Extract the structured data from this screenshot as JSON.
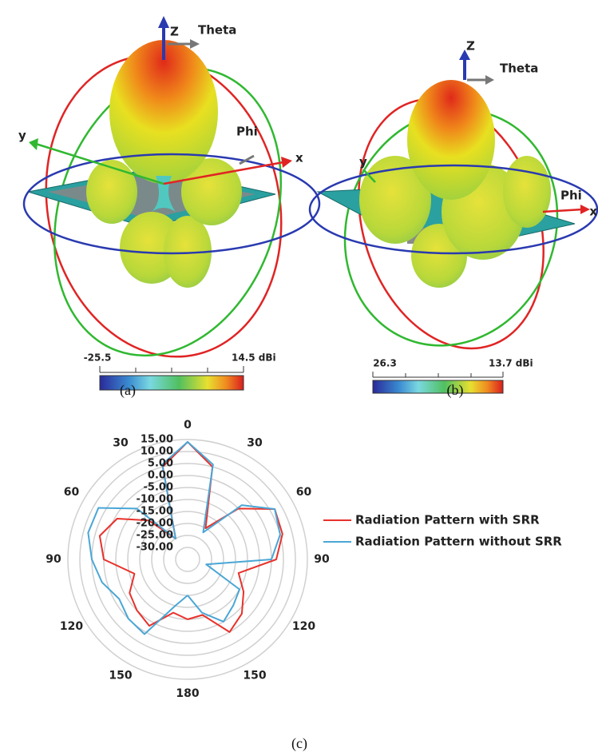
{
  "panel_a": {
    "labels": {
      "z": "Z",
      "theta": "Theta",
      "y": "y",
      "phi": "Phi",
      "x": "x"
    },
    "colorbar": {
      "min": "-25.5",
      "max": "14.5 dBi"
    },
    "caption": "(a)"
  },
  "panel_b": {
    "labels": {
      "z": "Z",
      "theta": "Theta",
      "y": "y",
      "phi": "Phi",
      "x": "x"
    },
    "colorbar": {
      "min": "26.3",
      "max": "13.7 dBi"
    },
    "caption": "(b)"
  },
  "chart_data": {
    "type": "polar",
    "caption": "(c)",
    "x": [
      -180,
      -165,
      -150,
      -135,
      -120,
      -105,
      -90,
      -75,
      -60,
      -45,
      -30,
      -15,
      0,
      15,
      30,
      45,
      60,
      75,
      90,
      105,
      120,
      135,
      150,
      165,
      180
    ],
    "xlim": [
      -180,
      180
    ],
    "xticks": [
      {
        "value": -150,
        "label": "150"
      },
      {
        "value": -120,
        "label": "120"
      },
      {
        "value": -90,
        "label": "90"
      },
      {
        "value": -60,
        "label": "60"
      },
      {
        "value": -30,
        "label": "30"
      },
      0,
      30,
      60,
      90,
      120,
      150,
      180
    ],
    "ylim": [
      -35,
      15
    ],
    "yticks": [
      {
        "value": 15,
        "label": "15.00"
      },
      {
        "value": 10,
        "label": "10.00"
      },
      {
        "value": 5,
        "label": "5.00"
      },
      {
        "value": 0,
        "label": "0.00"
      },
      {
        "value": -5,
        "label": "-5.00"
      },
      {
        "value": -10,
        "label": "-10.00"
      },
      {
        "value": -15,
        "label": "-15.00"
      },
      {
        "value": -20,
        "label": "-20.00"
      },
      {
        "value": -25,
        "label": "-25.00"
      },
      {
        "value": -30,
        "label": "-30.00"
      }
    ],
    "grid": true,
    "series": [
      {
        "name": "Radiation Pattern with SRR",
        "color": "#e8312b",
        "values": [
          -10,
          -12,
          -3,
          -5,
          -7,
          -12,
          0,
          3,
          -1,
          -12,
          -25,
          5,
          14,
          5,
          -20,
          -5,
          7,
          6,
          2,
          -13,
          -8,
          -3,
          0,
          -11,
          -10
        ]
      },
      {
        "name": "Radiation Pattern without SRR",
        "color": "#4aa6d6",
        "values": [
          -20,
          -15,
          1,
          0,
          -2,
          2,
          5,
          8,
          8,
          -5,
          -25,
          6,
          14,
          6,
          -22,
          -3,
          7,
          5,
          0,
          -27,
          -10,
          -8,
          -5,
          -12,
          -20
        ]
      }
    ]
  }
}
